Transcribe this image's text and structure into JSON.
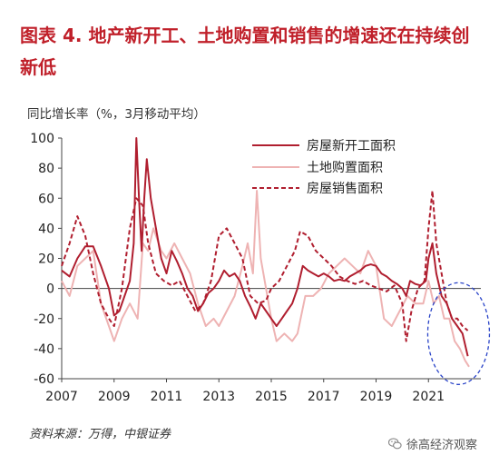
{
  "title": "图表 4.  地产新开工、土地购置和销售的增速还在持续创新低",
  "source": "资料来源：万得，中银证券",
  "watermark": {
    "text": "徐高经济观察",
    "icon": "wechat-icon"
  },
  "chart_data": {
    "type": "line",
    "ylabel": "同比增长率（%，3月移动平均）",
    "ylim": [
      -60,
      100
    ],
    "yticks": [
      -60,
      -40,
      -20,
      0,
      20,
      40,
      60,
      80,
      100
    ],
    "xlim": [
      2007,
      2023
    ],
    "xticks": [
      "2007",
      "2009",
      "2011",
      "2013",
      "2015",
      "2017",
      "2019",
      "2021"
    ],
    "legend_position": "top-right",
    "annotation": "dashed ellipse highlighting 2021-2022 lows",
    "series": [
      {
        "name": "房屋新开工面积",
        "style": "solid",
        "color": "#b01e2f",
        "points": [
          [
            2007.0,
            12
          ],
          [
            2007.3,
            8
          ],
          [
            2007.6,
            20
          ],
          [
            2007.9,
            28
          ],
          [
            2008.2,
            28
          ],
          [
            2008.5,
            15
          ],
          [
            2008.8,
            0
          ],
          [
            2009.0,
            -18
          ],
          [
            2009.2,
            -15
          ],
          [
            2009.4,
            -5
          ],
          [
            2009.6,
            5
          ],
          [
            2009.75,
            30
          ],
          [
            2009.85,
            100
          ],
          [
            2009.95,
            60
          ],
          [
            2010.05,
            25
          ],
          [
            2010.15,
            60
          ],
          [
            2010.25,
            86
          ],
          [
            2010.4,
            60
          ],
          [
            2010.6,
            40
          ],
          [
            2010.8,
            20
          ],
          [
            2011.0,
            10
          ],
          [
            2011.2,
            25
          ],
          [
            2011.4,
            18
          ],
          [
            2011.6,
            10
          ],
          [
            2011.8,
            0
          ],
          [
            2012.0,
            -5
          ],
          [
            2012.2,
            -15
          ],
          [
            2012.4,
            -10
          ],
          [
            2012.6,
            -3
          ],
          [
            2012.8,
            0
          ],
          [
            2013.0,
            5
          ],
          [
            2013.2,
            12
          ],
          [
            2013.4,
            8
          ],
          [
            2013.6,
            10
          ],
          [
            2013.8,
            5
          ],
          [
            2014.0,
            -5
          ],
          [
            2014.2,
            -12
          ],
          [
            2014.4,
            -20
          ],
          [
            2014.6,
            -10
          ],
          [
            2014.8,
            -15
          ],
          [
            2015.0,
            -20
          ],
          [
            2015.2,
            -25
          ],
          [
            2015.4,
            -20
          ],
          [
            2015.6,
            -15
          ],
          [
            2015.8,
            -10
          ],
          [
            2016.0,
            0
          ],
          [
            2016.2,
            15
          ],
          [
            2016.4,
            12
          ],
          [
            2016.6,
            10
          ],
          [
            2016.8,
            8
          ],
          [
            2017.0,
            10
          ],
          [
            2017.2,
            8
          ],
          [
            2017.4,
            5
          ],
          [
            2017.6,
            6
          ],
          [
            2017.8,
            5
          ],
          [
            2018.0,
            8
          ],
          [
            2018.2,
            10
          ],
          [
            2018.4,
            12
          ],
          [
            2018.6,
            15
          ],
          [
            2018.8,
            16
          ],
          [
            2019.0,
            15
          ],
          [
            2019.2,
            10
          ],
          [
            2019.4,
            8
          ],
          [
            2019.6,
            5
          ],
          [
            2019.8,
            3
          ],
          [
            2020.0,
            0
          ],
          [
            2020.15,
            -5
          ],
          [
            2020.3,
            5
          ],
          [
            2020.5,
            3
          ],
          [
            2020.7,
            2
          ],
          [
            2020.9,
            5
          ],
          [
            2021.0,
            20
          ],
          [
            2021.15,
            30
          ],
          [
            2021.3,
            10
          ],
          [
            2021.5,
            -5
          ],
          [
            2021.7,
            -10
          ],
          [
            2021.9,
            -20
          ],
          [
            2022.1,
            -25
          ],
          [
            2022.3,
            -30
          ],
          [
            2022.5,
            -45
          ]
        ]
      },
      {
        "name": "土地购置面积",
        "style": "solid",
        "color": "#eeb3b3",
        "points": [
          [
            2007.0,
            5
          ],
          [
            2007.3,
            -5
          ],
          [
            2007.6,
            15
          ],
          [
            2007.9,
            20
          ],
          [
            2008.2,
            25
          ],
          [
            2008.5,
            -10
          ],
          [
            2008.8,
            -25
          ],
          [
            2009.0,
            -35
          ],
          [
            2009.3,
            -20
          ],
          [
            2009.6,
            -10
          ],
          [
            2009.9,
            -20
          ],
          [
            2010.1,
            30
          ],
          [
            2010.3,
            25
          ],
          [
            2010.5,
            40
          ],
          [
            2010.8,
            25
          ],
          [
            2011.0,
            20
          ],
          [
            2011.3,
            30
          ],
          [
            2011.6,
            20
          ],
          [
            2011.9,
            10
          ],
          [
            2012.2,
            -10
          ],
          [
            2012.5,
            -25
          ],
          [
            2012.8,
            -20
          ],
          [
            2013.0,
            -25
          ],
          [
            2013.3,
            -15
          ],
          [
            2013.6,
            -5
          ],
          [
            2013.9,
            15
          ],
          [
            2014.1,
            30
          ],
          [
            2014.3,
            10
          ],
          [
            2014.45,
            65
          ],
          [
            2014.6,
            20
          ],
          [
            2014.8,
            0
          ],
          [
            2015.0,
            -20
          ],
          [
            2015.2,
            -35
          ],
          [
            2015.5,
            -30
          ],
          [
            2015.8,
            -35
          ],
          [
            2016.0,
            -30
          ],
          [
            2016.3,
            -5
          ],
          [
            2016.6,
            -5
          ],
          [
            2016.9,
            0
          ],
          [
            2017.2,
            10
          ],
          [
            2017.5,
            15
          ],
          [
            2017.8,
            20
          ],
          [
            2018.1,
            15
          ],
          [
            2018.4,
            10
          ],
          [
            2018.7,
            25
          ],
          [
            2019.0,
            15
          ],
          [
            2019.3,
            -20
          ],
          [
            2019.6,
            -25
          ],
          [
            2019.9,
            -15
          ],
          [
            2020.2,
            -5
          ],
          [
            2020.5,
            -10
          ],
          [
            2020.8,
            -10
          ],
          [
            2021.0,
            5
          ],
          [
            2021.2,
            -10
          ],
          [
            2021.4,
            -5
          ],
          [
            2021.6,
            -20
          ],
          [
            2021.8,
            -20
          ],
          [
            2022.0,
            -35
          ],
          [
            2022.2,
            -40
          ],
          [
            2022.4,
            -48
          ],
          [
            2022.55,
            -52
          ]
        ]
      },
      {
        "name": "房屋销售面积",
        "style": "dashed",
        "color": "#b01e2f",
        "points": [
          [
            2007.0,
            15
          ],
          [
            2007.3,
            30
          ],
          [
            2007.6,
            48
          ],
          [
            2007.9,
            35
          ],
          [
            2008.2,
            10
          ],
          [
            2008.5,
            -10
          ],
          [
            2008.8,
            -20
          ],
          [
            2009.0,
            -25
          ],
          [
            2009.3,
            0
          ],
          [
            2009.6,
            40
          ],
          [
            2009.85,
            60
          ],
          [
            2010.1,
            55
          ],
          [
            2010.3,
            30
          ],
          [
            2010.6,
            10
          ],
          [
            2010.9,
            5
          ],
          [
            2011.2,
            2
          ],
          [
            2011.5,
            5
          ],
          [
            2011.8,
            -5
          ],
          [
            2012.1,
            -15
          ],
          [
            2012.4,
            -10
          ],
          [
            2012.7,
            5
          ],
          [
            2013.0,
            35
          ],
          [
            2013.3,
            40
          ],
          [
            2013.6,
            30
          ],
          [
            2013.9,
            20
          ],
          [
            2014.2,
            -5
          ],
          [
            2014.5,
            -10
          ],
          [
            2014.8,
            -8
          ],
          [
            2015.0,
            0
          ],
          [
            2015.3,
            5
          ],
          [
            2015.6,
            15
          ],
          [
            2015.9,
            25
          ],
          [
            2016.1,
            38
          ],
          [
            2016.4,
            35
          ],
          [
            2016.7,
            25
          ],
          [
            2017.0,
            20
          ],
          [
            2017.3,
            15
          ],
          [
            2017.6,
            8
          ],
          [
            2017.9,
            5
          ],
          [
            2018.2,
            3
          ],
          [
            2018.5,
            5
          ],
          [
            2018.8,
            2
          ],
          [
            2019.1,
            0
          ],
          [
            2019.4,
            -2
          ],
          [
            2019.7,
            2
          ],
          [
            2020.0,
            -10
          ],
          [
            2020.15,
            -35
          ],
          [
            2020.35,
            -15
          ],
          [
            2020.6,
            0
          ],
          [
            2020.85,
            5
          ],
          [
            2021.0,
            40
          ],
          [
            2021.15,
            65
          ],
          [
            2021.3,
            30
          ],
          [
            2021.5,
            10
          ],
          [
            2021.7,
            -10
          ],
          [
            2021.9,
            -20
          ],
          [
            2022.1,
            -20
          ],
          [
            2022.3,
            -25
          ],
          [
            2022.5,
            -28
          ]
        ]
      }
    ]
  }
}
